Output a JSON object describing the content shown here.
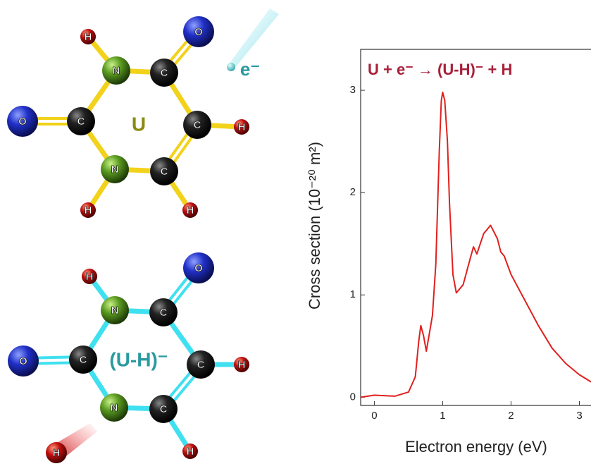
{
  "chart_data": {
    "type": "line",
    "annotation": "U + e⁻ → (U-H)⁻ + H",
    "x_label": "Electron energy (eV)",
    "y_label": "Cross section (10⁻²⁰ m²)",
    "xlim": [
      -0.2,
      3.17
    ],
    "ylim": [
      -0.08,
      3.4
    ],
    "xticks": [
      0,
      1,
      2,
      3
    ],
    "yticks": [
      0,
      1,
      2,
      3
    ],
    "series": [
      {
        "color": "#e0201e",
        "x": [
          -0.2,
          0,
          0.3,
          0.5,
          0.6,
          0.65,
          0.68,
          0.72,
          0.76,
          0.8,
          0.85,
          0.9,
          0.95,
          0.98,
          1.0,
          1.03,
          1.07,
          1.1,
          1.15,
          1.2,
          1.3,
          1.4,
          1.45,
          1.5,
          1.55,
          1.6,
          1.7,
          1.8,
          1.85,
          1.9,
          2.0,
          2.2,
          2.4,
          2.6,
          2.8,
          3.0,
          3.17
        ],
        "values": [
          0.0,
          0.02,
          0.01,
          0.05,
          0.2,
          0.55,
          0.7,
          0.6,
          0.45,
          0.6,
          0.8,
          1.3,
          2.4,
          2.9,
          2.98,
          2.9,
          2.5,
          1.9,
          1.2,
          1.02,
          1.1,
          1.35,
          1.47,
          1.4,
          1.5,
          1.6,
          1.68,
          1.55,
          1.42,
          1.38,
          1.2,
          0.95,
          0.7,
          0.48,
          0.33,
          0.22,
          0.15
        ]
      }
    ]
  },
  "molecules": [
    {
      "label": "U",
      "atoms": [
        "O",
        "H",
        "N",
        "C",
        "O",
        "C",
        "C",
        "H",
        "N",
        "C",
        "H",
        "H"
      ]
    },
    {
      "label": "(U-H)⁻",
      "atoms": [
        "O",
        "H",
        "N",
        "C",
        "O",
        "C",
        "C",
        "H",
        "N",
        "C",
        "H"
      ]
    }
  ],
  "electron": "e⁻",
  "leaving_atom": "H"
}
